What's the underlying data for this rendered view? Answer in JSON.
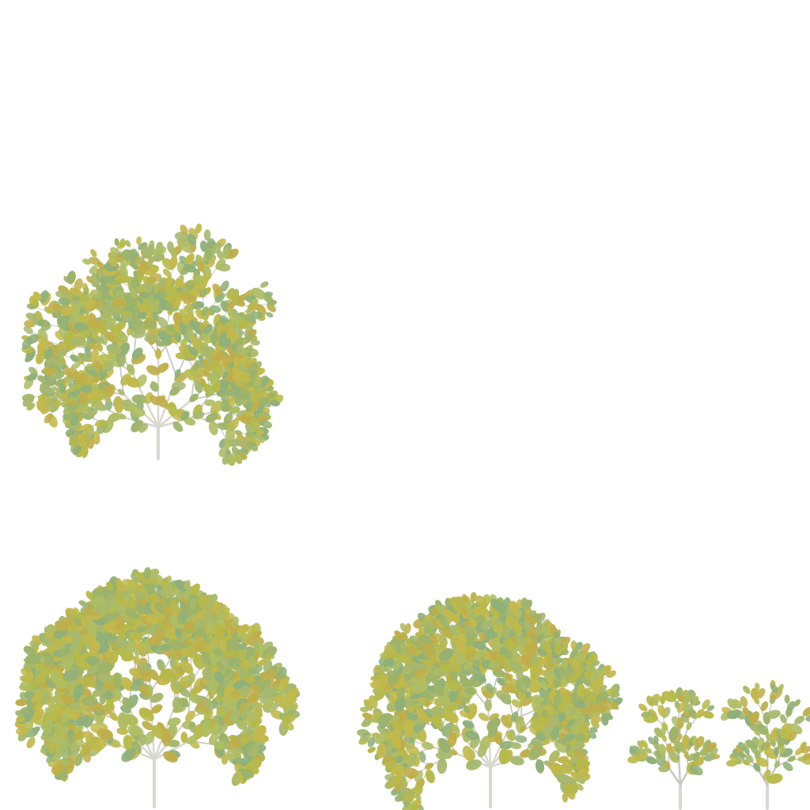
{
  "scene": {
    "background": "#ffffff",
    "leaf_colors": [
      "#9cb36a",
      "#b7b94a",
      "#a7b86e",
      "#c2b94b",
      "#8fb07a",
      "#aebd64",
      "#bfae4a"
    ],
    "branch_color": "#c8c8c4",
    "trunk_color": "#d9d8d0",
    "plants": [
      {
        "name": "bush-top-left",
        "kind": "wide shrub",
        "density": 1.0,
        "seed": 11
      },
      {
        "name": "bush-large",
        "kind": "large shrub",
        "density": 1.25,
        "seed": 23
      },
      {
        "name": "bush-medium",
        "kind": "medium shrub",
        "density": 1.1,
        "seed": 37
      },
      {
        "name": "bush-small-left",
        "kind": "sapling",
        "density": 0.5,
        "seed": 41
      },
      {
        "name": "bush-small-right",
        "kind": "sapling",
        "density": 0.45,
        "seed": 53
      }
    ]
  }
}
